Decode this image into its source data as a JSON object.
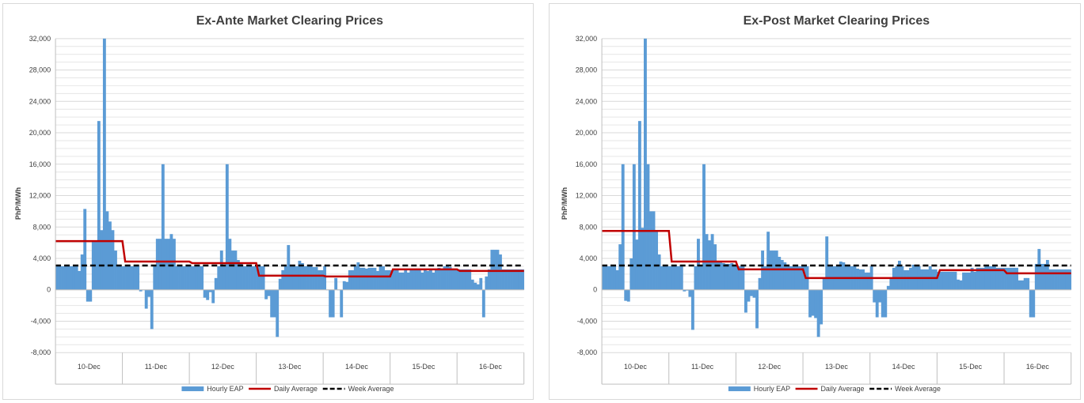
{
  "colors": {
    "bars": "#5b9bd5",
    "daily_average": "#c00000",
    "week_average": "#000000",
    "gridline": "#e6e6e6",
    "axis": "#bfbfbf"
  },
  "chart_data": [
    {
      "type": "bar",
      "title": "Ex-Ante Market Clearing Prices",
      "ylabel": "PhP/MWh",
      "xlabel": "",
      "ylim": [
        -8000,
        32000
      ],
      "yticks": [
        -8000,
        -4000,
        0,
        4000,
        8000,
        12000,
        16000,
        20000,
        24000,
        28000,
        32000
      ],
      "ytick_labels": [
        "-8,000",
        "-4,000",
        "0",
        "4,000",
        "8,000",
        "12,000",
        "16,000",
        "20,000",
        "24,000",
        "28,000",
        "32,000"
      ],
      "categories": [
        "10-Dec",
        "11-Dec",
        "12-Dec",
        "13-Dec",
        "14-Dec",
        "15-Dec",
        "16-Dec"
      ],
      "grid": true,
      "legend_position": "bottom",
      "legend": [
        "Hourly EAP",
        "Daily Average",
        "Week Average"
      ],
      "series": [
        {
          "name": "Hourly EAP",
          "kind": "bar",
          "values": [
            [
              3000,
              3000,
              3000,
              3000,
              3000,
              3000,
              3000,
              3000,
              2400,
              4500,
              10300,
              -1500,
              -1500,
              6300,
              6300,
              21500,
              7600,
              32000,
              10000,
              8700,
              7600,
              5000,
              3000,
              3000
            ],
            [
              3000,
              3000,
              3000,
              3000,
              3000,
              3000,
              -200,
              0,
              -2400,
              -900,
              -5000,
              3000,
              6500,
              6500,
              16000,
              6500,
              6500,
              7100,
              6500,
              3000,
              3000,
              3000,
              3000,
              3000
            ],
            [
              3000,
              3000,
              3000,
              3000,
              3000,
              -1000,
              -1300,
              -300,
              -1700,
              1500,
              3000,
              5000,
              3000,
              16000,
              6500,
              5000,
              5000,
              3800,
              3500,
              3000,
              3000,
              3000,
              3000,
              3000
            ],
            [
              3000,
              3000,
              3000,
              -1200,
              -800,
              -3500,
              -3500,
              -6000,
              1400,
              2500,
              3000,
              5700,
              3000,
              3000,
              3000,
              3700,
              3400,
              3000,
              3000,
              3000,
              2900,
              2900,
              2500,
              2500
            ],
            [
              3000,
              0,
              -3500,
              -3500,
              1500,
              0,
              -3500,
              1100,
              1000,
              2500,
              2500,
              3000,
              3500,
              2800,
              2800,
              2700,
              2800,
              2800,
              2800,
              2400,
              3000,
              3000,
              2500,
              2500
            ],
            [
              2500,
              2500,
              2500,
              2200,
              2200,
              2500,
              2200,
              2500,
              2500,
              2500,
              2500,
              2200,
              2600,
              2400,
              2600,
              2200,
              2500,
              2800,
              2600,
              3000,
              3000,
              2900,
              2600,
              2600
            ],
            [
              2600,
              2600,
              2600,
              2600,
              2600,
              1300,
              900,
              700,
              1500,
              -3500,
              1700,
              2600,
              5100,
              5100,
              5100,
              4500,
              2600,
              2600,
              2600,
              2600,
              2600,
              2600,
              2600,
              2600
            ]
          ]
        },
        {
          "name": "Daily Average",
          "kind": "step-line",
          "values": [
            6200,
            3600,
            3400,
            1800,
            1700,
            2600,
            2400
          ]
        },
        {
          "name": "Week Average",
          "kind": "dashed-line",
          "value": 3100
        }
      ]
    },
    {
      "type": "bar",
      "title": "Ex-Post Market Clearing Prices",
      "ylabel": "PhP/MWh",
      "xlabel": "",
      "ylim": [
        -8000,
        32000
      ],
      "yticks": [
        -8000,
        -4000,
        0,
        4000,
        8000,
        12000,
        16000,
        20000,
        24000,
        28000,
        32000
      ],
      "ytick_labels": [
        "-8,000",
        "-4,000",
        "0",
        "4,000",
        "8,000",
        "12,000",
        "16,000",
        "20,000",
        "24,000",
        "28,000",
        "32,000"
      ],
      "categories": [
        "10-Dec",
        "11-Dec",
        "12-Dec",
        "13-Dec",
        "14-Dec",
        "15-Dec",
        "16-Dec"
      ],
      "grid": true,
      "legend_position": "bottom",
      "legend": [
        "Hourly EAP",
        "Daily Average",
        "Week Average"
      ],
      "series": [
        {
          "name": "Hourly EAP",
          "kind": "bar",
          "values": [
            [
              3000,
              3000,
              3000,
              3000,
              3000,
              2500,
              5800,
              16000,
              -1400,
              -1500,
              4000,
              16000,
              6400,
              21500,
              7900,
              32000,
              16000,
              10000,
              10000,
              7600,
              4500,
              3000,
              3000,
              3000
            ],
            [
              3000,
              3000,
              3000,
              3000,
              3000,
              -200,
              -100,
              -900,
              -5100,
              3000,
              6500,
              3000,
              16000,
              7100,
              6300,
              7100,
              5800,
              3500,
              3500,
              3400,
              3300,
              3300,
              3400,
              3000
            ],
            [
              3000,
              3000,
              3000,
              -2900,
              -1500,
              -800,
              -1000,
              -4900,
              1500,
              5000,
              3000,
              7400,
              5000,
              5000,
              5000,
              4200,
              3800,
              3500,
              3000,
              3000,
              3000,
              3000,
              3000,
              3000
            ],
            [
              3000,
              3000,
              -3500,
              -3300,
              -3600,
              -6000,
              -4400,
              1500,
              6800,
              3000,
              3000,
              3000,
              3000,
              3600,
              3500,
              3000,
              3000,
              3000,
              3000,
              2700,
              2600,
              2600,
              2200,
              2200
            ],
            [
              3000,
              -1600,
              -3500,
              -1600,
              -3500,
              -3500,
              500,
              1500,
              2800,
              3000,
              3700,
              3000,
              2500,
              2500,
              2800,
              3200,
              3000,
              3000,
              2600,
              2600,
              2600,
              3000,
              2600,
              2600
            ],
            [
              2300,
              2300,
              2300,
              2300,
              2300,
              2300,
              2300,
              1300,
              1200,
              2200,
              2200,
              2200,
              2800,
              2300,
              2800,
              2800,
              2800,
              3000,
              3000,
              3000,
              3000,
              2800,
              2800,
              2800
            ],
            [
              2800,
              2800,
              2800,
              2800,
              2800,
              1200,
              1200,
              1500,
              1500,
              -3500,
              -3500,
              3300,
              5200,
              3300,
              3300,
              3800,
              2600,
              2600,
              2600,
              2600,
              2600,
              2600,
              2600,
              2600
            ]
          ]
        },
        {
          "name": "Daily Average",
          "kind": "step-line",
          "values": [
            7500,
            3600,
            2600,
            1500,
            1500,
            2500,
            2100
          ]
        },
        {
          "name": "Week Average",
          "kind": "dashed-line",
          "value": 3100
        }
      ]
    }
  ]
}
